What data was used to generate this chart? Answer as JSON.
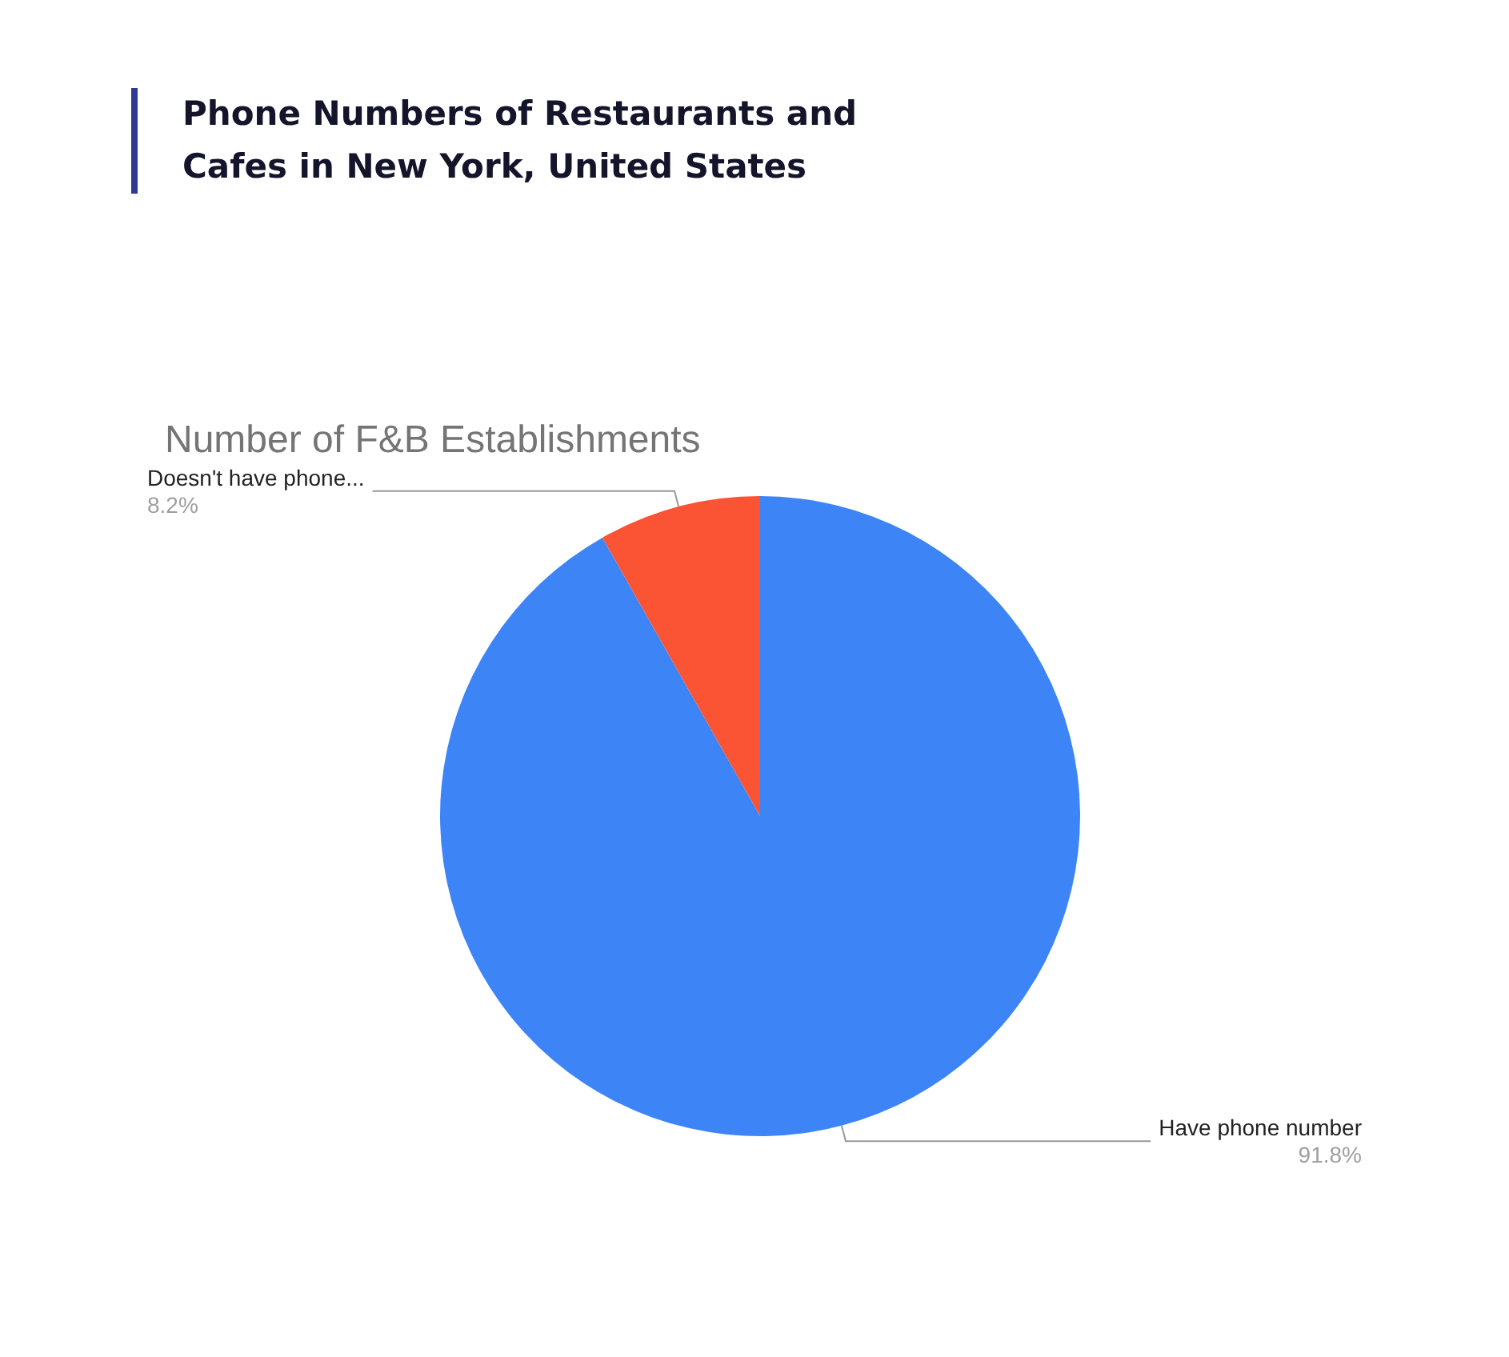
{
  "chart_data": {
    "type": "pie",
    "title": "Phone Numbers of Restaurants and Cafes in New York, United States",
    "subtitle": "Number of F&B Establishments",
    "categories": [
      "Have phone number",
      "Doesn't have phone..."
    ],
    "values": [
      91.8,
      8.2
    ],
    "colors": [
      "#3d85f6",
      "#fb5434"
    ],
    "value_labels": [
      "91.8%",
      "8.2%"
    ],
    "legend": false
  }
}
